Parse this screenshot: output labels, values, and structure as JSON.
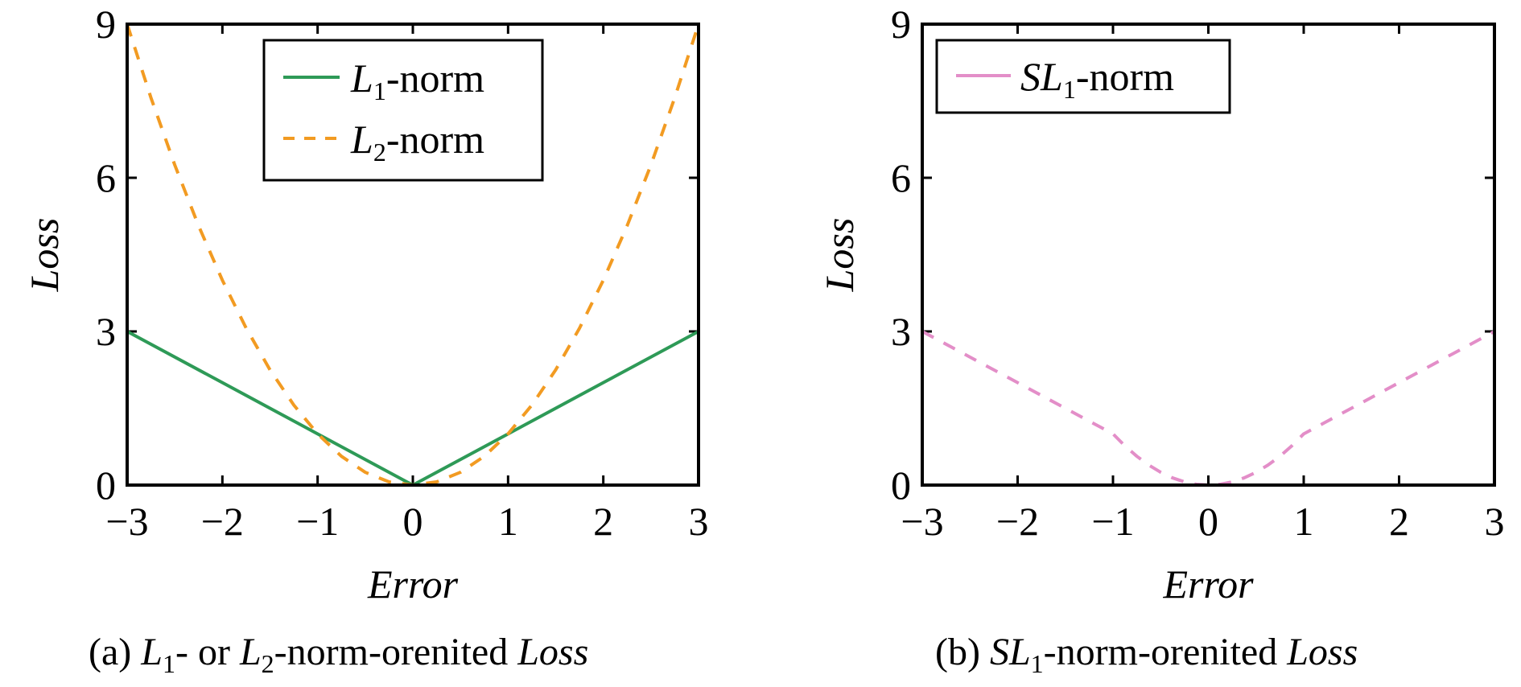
{
  "chart_data": [
    {
      "type": "line",
      "xlabel": "Error",
      "ylabel": "Loss",
      "xlim": [
        -3,
        3
      ],
      "ylim": [
        0,
        9
      ],
      "xticks": [
        -3,
        -2,
        -1,
        0,
        1,
        2,
        3
      ],
      "yticks": [
        0,
        3,
        6,
        9
      ],
      "xtick_labels": [
        "−3",
        "−2",
        "−1",
        "0",
        "1",
        "2",
        "3"
      ],
      "ytick_labels": [
        "0",
        "3",
        "6",
        "9"
      ],
      "grid": false,
      "legend_position": "top-center",
      "caption": {
        "prefix": "(a) ",
        "l1_letter": "L",
        "l1_sub": "1",
        "middle": "- or ",
        "l2_letter": "L",
        "l2_sub": "2",
        "suffix": "-norm-orenited ",
        "last": "Loss"
      },
      "series": [
        {
          "name": "L1-norm",
          "legend_letter": "L",
          "legend_sub": "1",
          "legend_suffix": "-norm",
          "style": "solid",
          "color": "#2e9a57",
          "x": [
            -3,
            -2,
            -1,
            0,
            1,
            2,
            3
          ],
          "y": [
            3,
            2,
            1,
            0,
            1,
            2,
            3
          ]
        },
        {
          "name": "L2-norm",
          "legend_letter": "L",
          "legend_sub": "2",
          "legend_suffix": "-norm",
          "style": "dashed",
          "color": "#f29b22",
          "x": [
            -3,
            -2.75,
            -2.5,
            -2.25,
            -2,
            -1.75,
            -1.5,
            -1.25,
            -1,
            -0.75,
            -0.5,
            -0.25,
            0,
            0.25,
            0.5,
            0.75,
            1,
            1.25,
            1.5,
            1.75,
            2,
            2.25,
            2.5,
            2.75,
            3
          ],
          "y": [
            9,
            7.5625,
            6.25,
            5.0625,
            4,
            3.0625,
            2.25,
            1.5625,
            1,
            0.5625,
            0.25,
            0.0625,
            0,
            0.0625,
            0.25,
            0.5625,
            1,
            1.5625,
            2.25,
            3.0625,
            4,
            5.0625,
            6.25,
            7.5625,
            9
          ]
        }
      ]
    },
    {
      "type": "line",
      "xlabel": "Error",
      "ylabel": "Loss",
      "xlim": [
        -3,
        3
      ],
      "ylim": [
        0,
        9
      ],
      "xticks": [
        -3,
        -2,
        -1,
        0,
        1,
        2,
        3
      ],
      "yticks": [
        0,
        3,
        6,
        9
      ],
      "xtick_labels": [
        "−3",
        "−2",
        "−1",
        "0",
        "1",
        "2",
        "3"
      ],
      "ytick_labels": [
        "0",
        "3",
        "6",
        "9"
      ],
      "grid": false,
      "legend_position": "top-left",
      "caption": {
        "prefix": "(b) ",
        "l1_letter": "SL",
        "l1_sub": "1",
        "suffix": "-norm-orenited ",
        "last": "Loss"
      },
      "series": [
        {
          "name": "SL1-norm",
          "legend_letter": "SL",
          "legend_sub": "1",
          "legend_suffix": "-norm",
          "style": "dashed",
          "color": "#e38ec8",
          "x": [
            -3,
            -2.5,
            -2,
            -1.5,
            -1,
            -0.875,
            -0.75,
            -0.625,
            -0.5,
            -0.375,
            -0.25,
            -0.125,
            0,
            0.125,
            0.25,
            0.375,
            0.5,
            0.625,
            0.75,
            0.875,
            1,
            1.5,
            2,
            2.5,
            3
          ],
          "y": [
            3,
            2.5,
            2,
            1.5,
            1,
            0.7656,
            0.5625,
            0.3906,
            0.25,
            0.1406,
            0.0625,
            0.0156,
            0,
            0.0156,
            0.0625,
            0.1406,
            0.25,
            0.3906,
            0.5625,
            0.7656,
            1,
            1.5,
            2,
            2.5,
            3
          ]
        }
      ]
    }
  ]
}
